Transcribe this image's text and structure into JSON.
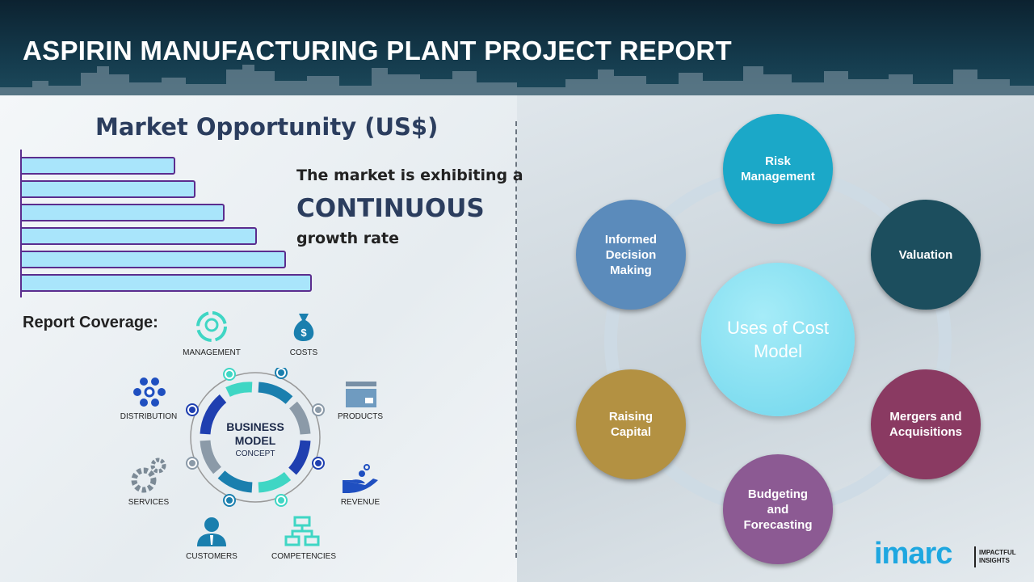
{
  "header": {
    "title": "ASPIRIN MANUFACTURING PLANT PROJECT REPORT"
  },
  "market": {
    "title": "Market Opportunity (US$)",
    "bars_relative_percent": [
      53,
      60,
      70,
      81,
      91,
      100
    ],
    "bar_color": "#a9e5fb",
    "bar_border_color": "#5b2d8e",
    "line1": "The market is exhibiting a",
    "line2": "CONTINUOUS",
    "line3": "growth rate"
  },
  "coverage": {
    "title": "Report Coverage:",
    "items": [
      "MANAGEMENT",
      "COSTS",
      "PRODUCTS",
      "REVENUE",
      "COMPETENCIES",
      "CUSTOMERS",
      "SERVICES",
      "DISTRIBUTION"
    ],
    "center": {
      "line1": "BUSINESS",
      "line2": "MODEL",
      "line3": "CONCEPT"
    }
  },
  "uses": {
    "center": "Uses of Cost Model",
    "nodes": [
      {
        "label": "Risk Management",
        "color": "#1ba8c8"
      },
      {
        "label": "Valuation",
        "color": "#1c4e5e"
      },
      {
        "label": "Mergers and Acquisitions",
        "color": "#8a3a62"
      },
      {
        "label": "Budgeting and Forecasting",
        "color": "#8c5a93"
      },
      {
        "label": "Raising Capital",
        "color": "#b39142"
      },
      {
        "label": "Informed Decision Making",
        "color": "#5b8bbb"
      }
    ]
  },
  "logo": {
    "name": "imarc",
    "tagline1": "IMPACTFUL",
    "tagline2": "INSIGHTS"
  }
}
